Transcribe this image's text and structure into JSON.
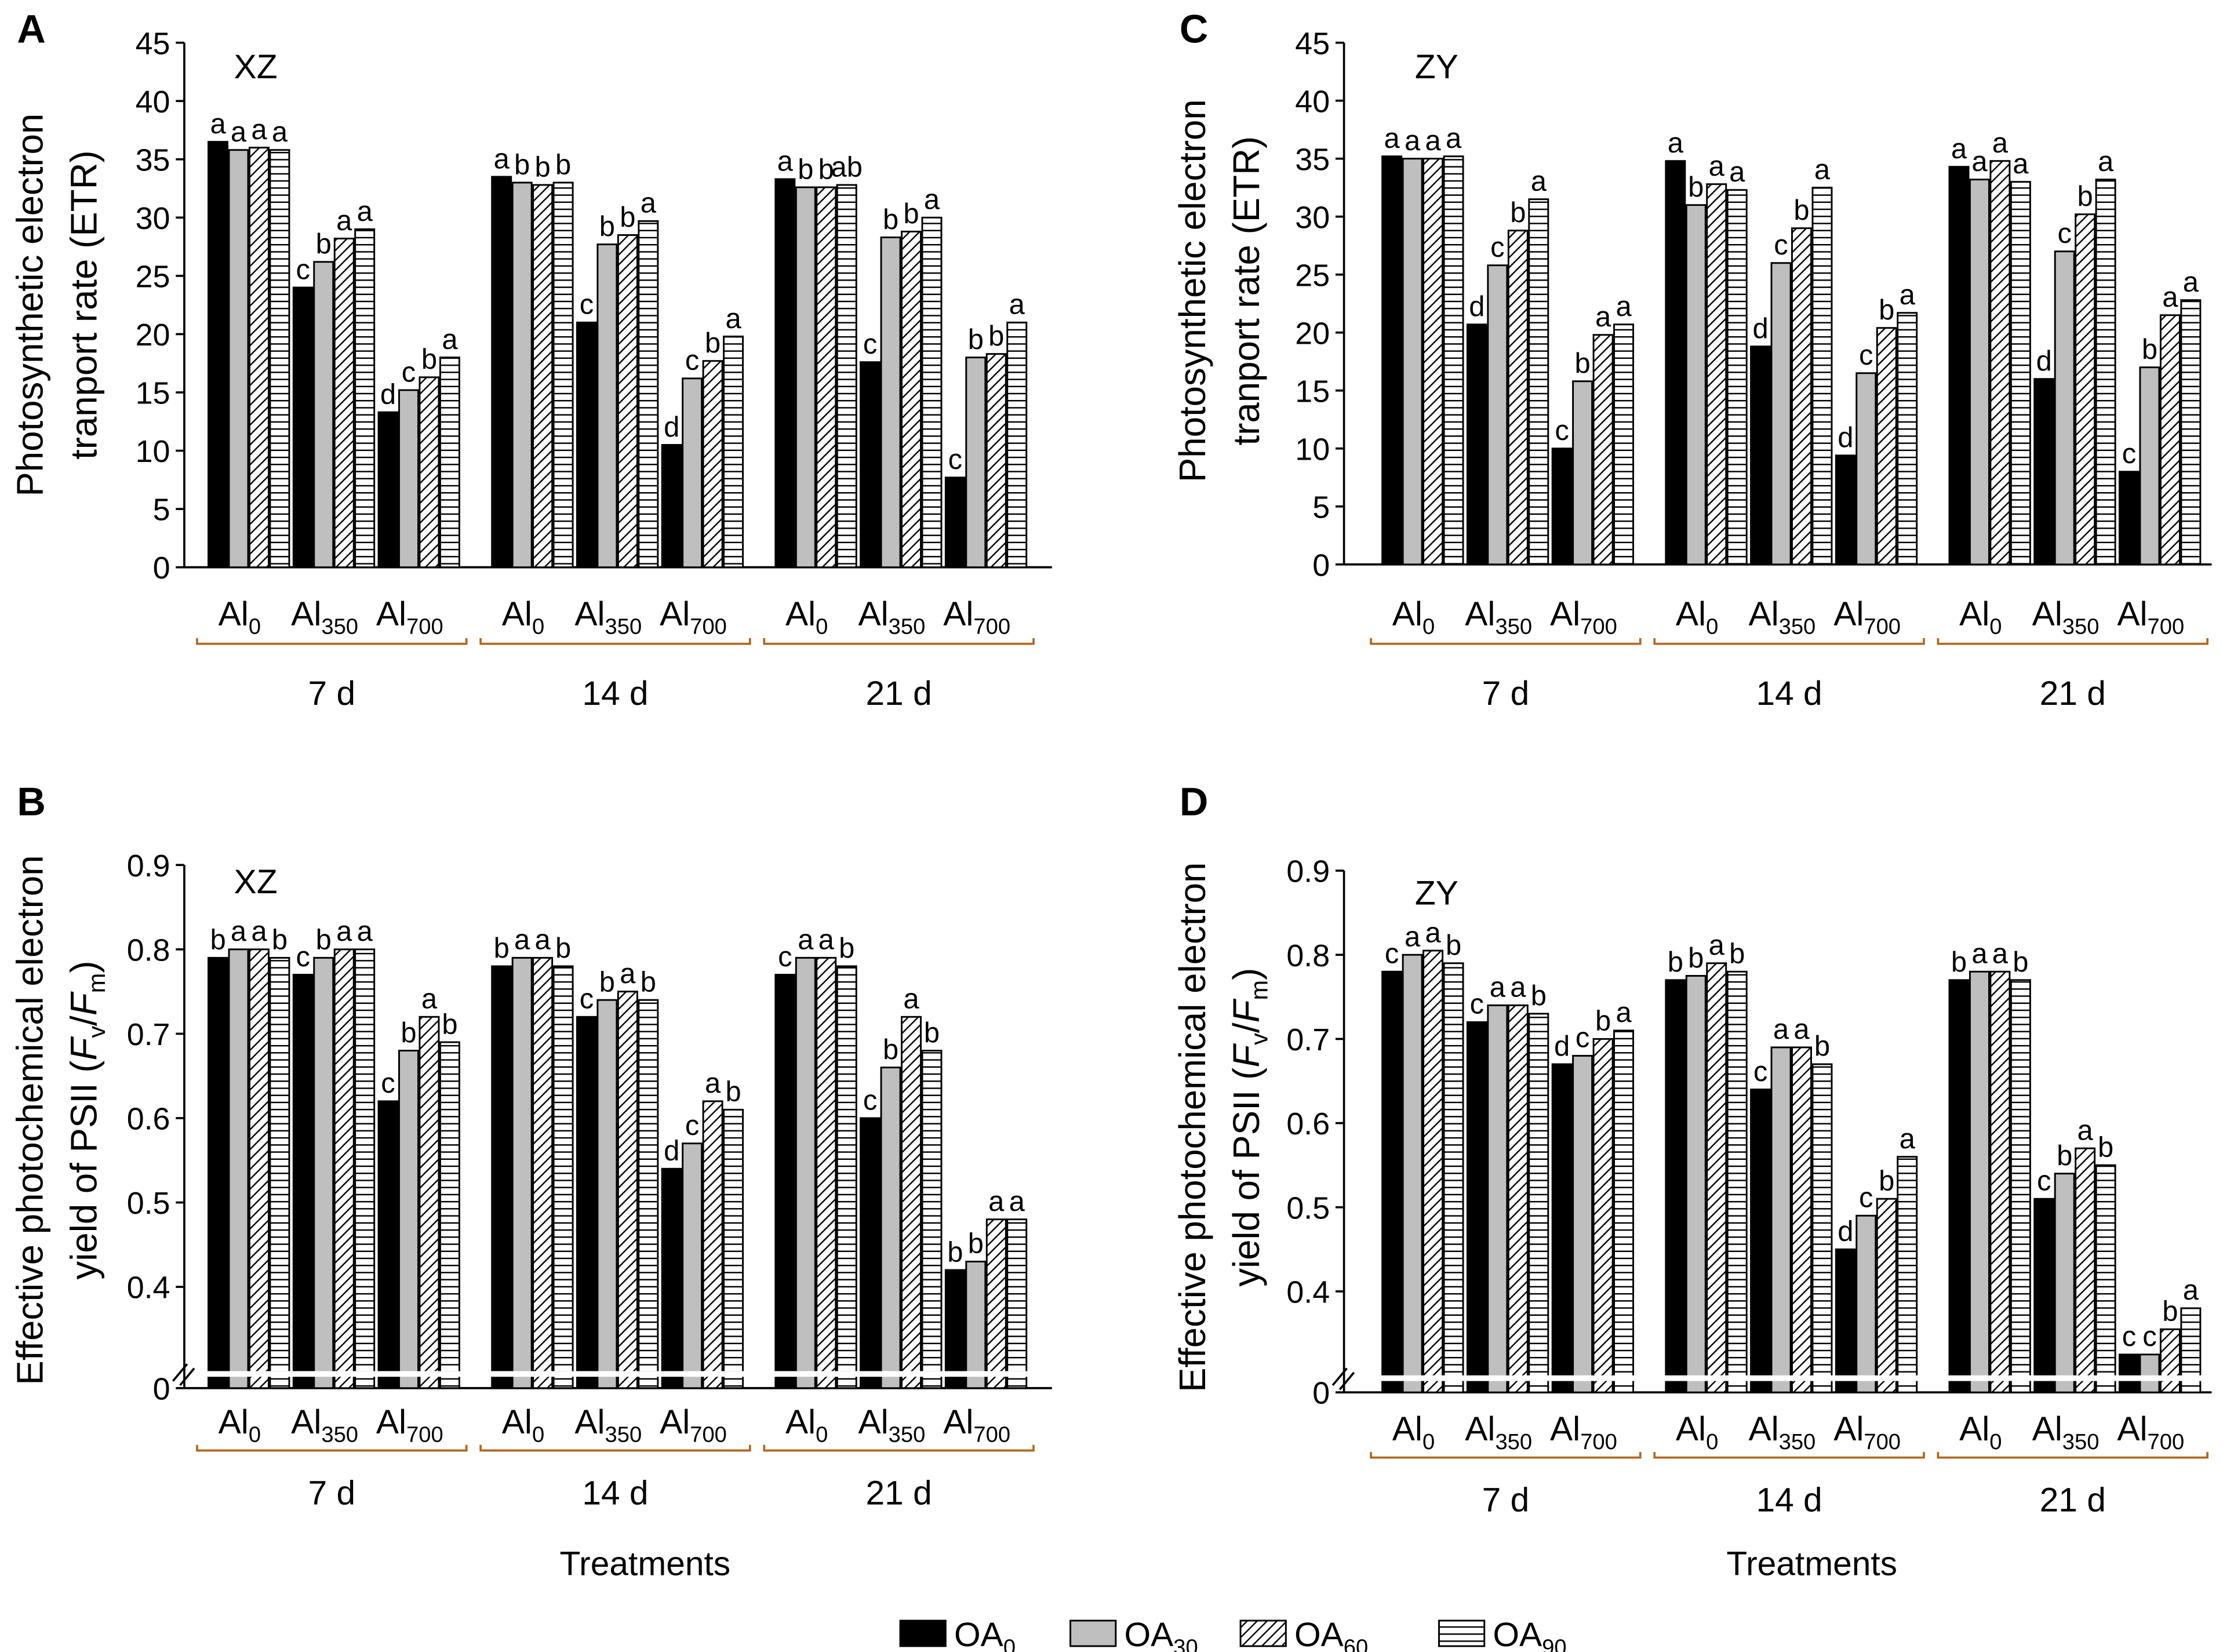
{
  "chart_data": [
    {
      "type": "bar",
      "panel": "A",
      "title": "XZ",
      "y_label": [
        "Photosynthetic electron",
        "tranport rate (ETR)"
      ],
      "groups": [
        "7 d",
        "14 d",
        "21 d"
      ],
      "categories": [
        {
          "text": "Al",
          "sub": "0"
        },
        {
          "text": "Al",
          "sub": "350"
        },
        {
          "text": "Al",
          "sub": "700"
        },
        {
          "text": "Al",
          "sub": "0"
        },
        {
          "text": "Al",
          "sub": "350"
        },
        {
          "text": "Al",
          "sub": "700"
        },
        {
          "text": "Al",
          "sub": "0"
        },
        {
          "text": "Al",
          "sub": "350"
        },
        {
          "text": "Al",
          "sub": "700"
        }
      ],
      "ylim": [
        0,
        45
      ],
      "yticks": [
        0,
        5,
        10,
        15,
        20,
        25,
        30,
        35,
        40,
        45
      ],
      "series": [
        {
          "name": "OA",
          "name_sub": "0",
          "color": "#000000",
          "pattern": "solid",
          "values": [
            36.5,
            24.0,
            13.3,
            33.5,
            21.0,
            10.5,
            33.3,
            17.6,
            7.7
          ],
          "letters": [
            "a",
            "c",
            "d",
            "a",
            "c",
            "d",
            "a",
            "c",
            "c"
          ]
        },
        {
          "name": "OA",
          "name_sub": "30",
          "color": "#bfbfbf",
          "pattern": "solid",
          "values": [
            35.8,
            26.2,
            15.2,
            33.0,
            27.7,
            16.2,
            32.6,
            28.3,
            18.0
          ],
          "letters": [
            "a",
            "b",
            "c",
            "b",
            "b",
            "c",
            "b",
            "b",
            "b"
          ]
        },
        {
          "name": "OA",
          "name_sub": "60",
          "color": "#ffffff",
          "pattern": "diagonal",
          "values": [
            36.0,
            28.2,
            16.3,
            32.8,
            28.5,
            17.7,
            32.6,
            28.8,
            18.3
          ],
          "letters": [
            "a",
            "a",
            "b",
            "b",
            "b",
            "b",
            "b",
            "b",
            "b"
          ]
        },
        {
          "name": "OA",
          "name_sub": "90",
          "color": "#ffffff",
          "pattern": "horizontal",
          "values": [
            35.8,
            29.0,
            18.0,
            33.0,
            29.7,
            19.8,
            32.8,
            30.0,
            21.0
          ],
          "letters": [
            "a",
            "a",
            "a",
            "b",
            "a",
            "a",
            "ab",
            "a",
            "a"
          ]
        }
      ]
    },
    {
      "type": "bar",
      "panel": "B",
      "title": "XZ",
      "y_label": [
        "Effective photochemical electron",
        [
          "yield of PSII (",
          "F",
          "v",
          "/",
          "F",
          "m",
          ")"
        ]
      ],
      "x_label": "Treatments",
      "groups": [
        "7 d",
        "14 d",
        "21 d"
      ],
      "categories": [
        {
          "text": "Al",
          "sub": "0"
        },
        {
          "text": "Al",
          "sub": "350"
        },
        {
          "text": "Al",
          "sub": "700"
        },
        {
          "text": "Al",
          "sub": "0"
        },
        {
          "text": "Al",
          "sub": "350"
        },
        {
          "text": "Al",
          "sub": "700"
        },
        {
          "text": "Al",
          "sub": "0"
        },
        {
          "text": "Al",
          "sub": "350"
        },
        {
          "text": "Al",
          "sub": "700"
        }
      ],
      "ylim": [
        0,
        0.9
      ],
      "axis_break": [
        0,
        0.28
      ],
      "yticks": [
        0,
        0.4,
        0.5,
        0.6,
        0.7,
        0.8,
        0.9
      ],
      "series": [
        {
          "name": "OA",
          "name_sub": "0",
          "color": "#000000",
          "pattern": "solid",
          "values": [
            0.79,
            0.77,
            0.62,
            0.78,
            0.72,
            0.54,
            0.77,
            0.6,
            0.42
          ],
          "letters": [
            "b",
            "c",
            "c",
            "b",
            "c",
            "d",
            "c",
            "c",
            "b"
          ]
        },
        {
          "name": "OA",
          "name_sub": "30",
          "color": "#bfbfbf",
          "pattern": "solid",
          "values": [
            0.8,
            0.79,
            0.68,
            0.79,
            0.74,
            0.57,
            0.79,
            0.66,
            0.43
          ],
          "letters": [
            "a",
            "b",
            "b",
            "a",
            "b",
            "c",
            "a",
            "b",
            "b"
          ]
        },
        {
          "name": "OA",
          "name_sub": "60",
          "color": "#ffffff",
          "pattern": "diagonal",
          "values": [
            0.8,
            0.8,
            0.72,
            0.79,
            0.75,
            0.62,
            0.79,
            0.72,
            0.48
          ],
          "letters": [
            "a",
            "a",
            "a",
            "a",
            "a",
            "a",
            "a",
            "a",
            "a"
          ]
        },
        {
          "name": "OA",
          "name_sub": "90",
          "color": "#ffffff",
          "pattern": "horizontal",
          "values": [
            0.79,
            0.8,
            0.69,
            0.78,
            0.74,
            0.61,
            0.78,
            0.68,
            0.48
          ],
          "letters": [
            "b",
            "a",
            "b",
            "b",
            "b",
            "b",
            "b",
            "b",
            "a"
          ]
        }
      ]
    },
    {
      "type": "bar",
      "panel": "C",
      "title": "ZY",
      "y_label": [
        "Photosynthetic electron",
        "tranport rate (ETR)"
      ],
      "groups": [
        "7 d",
        "14 d",
        "21 d"
      ],
      "categories": [
        {
          "text": "Al",
          "sub": "0"
        },
        {
          "text": "Al",
          "sub": "350"
        },
        {
          "text": "Al",
          "sub": "700"
        },
        {
          "text": "Al",
          "sub": "0"
        },
        {
          "text": "Al",
          "sub": "350"
        },
        {
          "text": "Al",
          "sub": "700"
        },
        {
          "text": "Al",
          "sub": "0"
        },
        {
          "text": "Al",
          "sub": "350"
        },
        {
          "text": "Al",
          "sub": "700"
        }
      ],
      "ylim": [
        0,
        45
      ],
      "yticks": [
        0,
        5,
        10,
        15,
        20,
        25,
        30,
        35,
        40,
        45
      ],
      "series": [
        {
          "name": "OA",
          "name_sub": "0",
          "color": "#000000",
          "pattern": "solid",
          "values": [
            35.2,
            20.7,
            10.0,
            34.8,
            18.8,
            9.4,
            34.3,
            16.0,
            8.0
          ],
          "letters": [
            "a",
            "d",
            "c",
            "a",
            "d",
            "d",
            "a",
            "d",
            "c"
          ]
        },
        {
          "name": "OA",
          "name_sub": "30",
          "color": "#bfbfbf",
          "pattern": "solid",
          "values": [
            35.0,
            25.8,
            15.8,
            31.0,
            26.0,
            16.5,
            33.2,
            27.0,
            17.0
          ],
          "letters": [
            "a",
            "c",
            "b",
            "b",
            "c",
            "c",
            "a",
            "c",
            "b"
          ]
        },
        {
          "name": "OA",
          "name_sub": "60",
          "color": "#ffffff",
          "pattern": "diagonal",
          "values": [
            35.0,
            28.8,
            19.8,
            32.8,
            29.0,
            20.4,
            34.8,
            30.2,
            21.5
          ],
          "letters": [
            "a",
            "b",
            "a",
            "a",
            "b",
            "b",
            "a",
            "b",
            "a"
          ]
        },
        {
          "name": "OA",
          "name_sub": "90",
          "color": "#ffffff",
          "pattern": "horizontal",
          "values": [
            35.2,
            31.5,
            20.7,
            32.3,
            32.5,
            21.7,
            33.0,
            33.2,
            22.8
          ],
          "letters": [
            "a",
            "a",
            "a",
            "a",
            "a",
            "a",
            "a",
            "a",
            "a"
          ]
        }
      ]
    },
    {
      "type": "bar",
      "panel": "D",
      "title": "ZY",
      "y_label": [
        "Effective photochemical electron",
        [
          "yield of PSII (",
          "F",
          "v",
          "/",
          "F",
          "m",
          ")"
        ]
      ],
      "x_label": "Treatments",
      "groups": [
        "7 d",
        "14 d",
        "21 d"
      ],
      "categories": [
        {
          "text": "Al",
          "sub": "0"
        },
        {
          "text": "Al",
          "sub": "350"
        },
        {
          "text": "Al",
          "sub": "700"
        },
        {
          "text": "Al",
          "sub": "0"
        },
        {
          "text": "Al",
          "sub": "350"
        },
        {
          "text": "Al",
          "sub": "700"
        },
        {
          "text": "Al",
          "sub": "0"
        },
        {
          "text": "Al",
          "sub": "350"
        },
        {
          "text": "Al",
          "sub": "700"
        }
      ],
      "ylim": [
        0,
        0.9
      ],
      "axis_break": [
        0,
        0.28
      ],
      "yticks": [
        0,
        0.4,
        0.5,
        0.6,
        0.7,
        0.8,
        0.9
      ],
      "series": [
        {
          "name": "OA",
          "name_sub": "0",
          "color": "#000000",
          "pattern": "solid",
          "values": [
            0.78,
            0.72,
            0.67,
            0.77,
            0.64,
            0.45,
            0.77,
            0.51,
            0.325
          ],
          "letters": [
            "c",
            "c",
            "d",
            "b",
            "c",
            "d",
            "b",
            "c",
            "c"
          ]
        },
        {
          "name": "OA",
          "name_sub": "30",
          "color": "#bfbfbf",
          "pattern": "solid",
          "values": [
            0.8,
            0.74,
            0.68,
            0.775,
            0.69,
            0.49,
            0.78,
            0.54,
            0.325
          ],
          "letters": [
            "a",
            "a",
            "c",
            "b",
            "a",
            "c",
            "a",
            "b",
            "c"
          ]
        },
        {
          "name": "OA",
          "name_sub": "60",
          "color": "#ffffff",
          "pattern": "diagonal",
          "values": [
            0.805,
            0.74,
            0.7,
            0.79,
            0.69,
            0.51,
            0.78,
            0.57,
            0.355
          ],
          "letters": [
            "a",
            "a",
            "b",
            "a",
            "a",
            "b",
            "a",
            "a",
            "b"
          ]
        },
        {
          "name": "OA",
          "name_sub": "90",
          "color": "#ffffff",
          "pattern": "horizontal",
          "values": [
            0.79,
            0.73,
            0.71,
            0.78,
            0.67,
            0.56,
            0.77,
            0.55,
            0.38
          ],
          "letters": [
            "b",
            "b",
            "a",
            "b",
            "b",
            "a",
            "b",
            "b",
            "a"
          ]
        }
      ]
    }
  ]
}
